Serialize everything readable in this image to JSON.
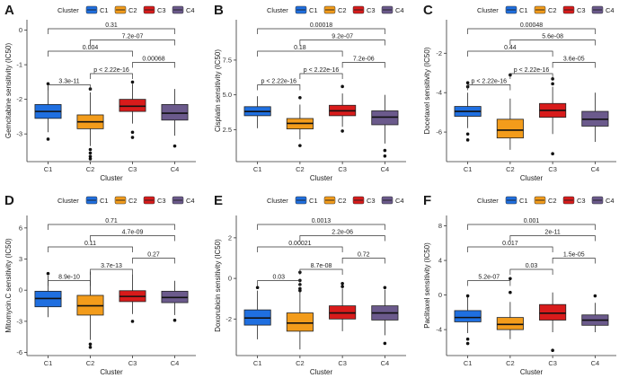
{
  "palette": {
    "C1": "#1f6fe0",
    "C2": "#f39c1b",
    "C3": "#d81b1b",
    "C4": "#6b5a8c"
  },
  "chart_data": [
    {
      "letter": "A",
      "type": "boxplot",
      "ylabel": "Gemcitabine sensitivity (IC50)",
      "xlabel": "Cluster",
      "legend_title": "Cluster",
      "legend": [
        "C1",
        "C2",
        "C3",
        "C4"
      ],
      "categories": [
        "C1",
        "C2",
        "C3",
        "C4"
      ],
      "ylim": [
        -3.8,
        0.3
      ],
      "yticks": [
        -3,
        -2,
        -1,
        0
      ],
      "boxes": [
        {
          "min": -2.95,
          "q1": -2.55,
          "median": -2.35,
          "q3": -2.15,
          "max": -1.6,
          "outliers": [
            -1.55,
            -3.15
          ]
        },
        {
          "min": -3.35,
          "q1": -2.85,
          "median": -2.65,
          "q3": -2.45,
          "max": -1.8,
          "outliers": [
            -1.7,
            -3.45,
            -3.55,
            -3.65,
            -3.72
          ]
        },
        {
          "min": -2.7,
          "q1": -2.35,
          "median": -2.2,
          "q3": -2.0,
          "max": -1.55,
          "outliers": [
            -1.5,
            -2.95,
            -3.1
          ]
        },
        {
          "min": -3.05,
          "q1": -2.6,
          "median": -2.4,
          "q3": -2.15,
          "max": -1.7,
          "outliers": [
            -3.35
          ]
        }
      ],
      "comparisons": [
        {
          "from": 0,
          "to": 1,
          "label": "3.3e-11"
        },
        {
          "from": 0,
          "to": 2,
          "label": "0.004"
        },
        {
          "from": 0,
          "to": 3,
          "label": "0.31"
        },
        {
          "from": 1,
          "to": 2,
          "label": "p < 2.22e-16"
        },
        {
          "from": 1,
          "to": 3,
          "label": "7.2e-07"
        },
        {
          "from": 2,
          "to": 3,
          "label": "0.00068"
        }
      ]
    },
    {
      "letter": "B",
      "type": "boxplot",
      "ylabel": "Cisplatin sensitivity (IC50)",
      "xlabel": "Cluster",
      "legend_title": "Cluster",
      "legend": [
        "C1",
        "C2",
        "C3",
        "C4"
      ],
      "categories": [
        "C1",
        "C2",
        "C3",
        "C4"
      ],
      "ylim": [
        0.2,
        10.4
      ],
      "yticks": [
        2.5,
        5.0,
        7.5
      ],
      "boxes": [
        {
          "min": 2.6,
          "q1": 3.5,
          "median": 3.8,
          "q3": 4.15,
          "max": 4.9,
          "outliers": []
        },
        {
          "min": 1.8,
          "q1": 2.55,
          "median": 2.95,
          "q3": 3.3,
          "max": 4.3,
          "outliers": [
            4.8,
            1.35
          ]
        },
        {
          "min": 2.7,
          "q1": 3.5,
          "median": 3.85,
          "q3": 4.25,
          "max": 5.1,
          "outliers": [
            5.6,
            2.4
          ]
        },
        {
          "min": 1.5,
          "q1": 2.85,
          "median": 3.4,
          "q3": 3.85,
          "max": 5.0,
          "outliers": [
            1.0,
            0.6
          ]
        }
      ],
      "comparisons": [
        {
          "from": 0,
          "to": 1,
          "label": "p < 2.22e-16"
        },
        {
          "from": 0,
          "to": 2,
          "label": "0.18"
        },
        {
          "from": 0,
          "to": 3,
          "label": "0.00018"
        },
        {
          "from": 1,
          "to": 2,
          "label": "p < 2.22e-16"
        },
        {
          "from": 1,
          "to": 3,
          "label": "9.2e-07"
        },
        {
          "from": 2,
          "to": 3,
          "label": "7.2e-06"
        }
      ]
    },
    {
      "letter": "C",
      "type": "boxplot",
      "ylabel": "Docetaxel sensitivity (IC50)",
      "xlabel": "Cluster",
      "legend_title": "Cluster",
      "legend": [
        "C1",
        "C2",
        "C3",
        "C4"
      ],
      "categories": [
        "C1",
        "C2",
        "C3",
        "C4"
      ],
      "ylim": [
        -7.5,
        -0.3
      ],
      "yticks": [
        -6,
        -4,
        -2
      ],
      "boxes": [
        {
          "min": -5.8,
          "q1": -5.2,
          "median": -4.95,
          "q3": -4.7,
          "max": -4.0,
          "outliers": [
            -3.5,
            -3.7,
            -6.1,
            -6.4
          ]
        },
        {
          "min": -6.9,
          "q1": -6.3,
          "median": -5.9,
          "q3": -5.35,
          "max": -4.3,
          "outliers": [
            -3.1
          ]
        },
        {
          "min": -6.1,
          "q1": -5.25,
          "median": -4.9,
          "q3": -4.55,
          "max": -3.7,
          "outliers": [
            -3.3,
            -3.55,
            -7.1
          ]
        },
        {
          "min": -6.5,
          "q1": -5.7,
          "median": -5.35,
          "q3": -4.95,
          "max": -4.0,
          "outliers": []
        }
      ],
      "comparisons": [
        {
          "from": 0,
          "to": 1,
          "label": "p < 2.22e-16"
        },
        {
          "from": 0,
          "to": 2,
          "label": "0.44"
        },
        {
          "from": 0,
          "to": 3,
          "label": "0.00048"
        },
        {
          "from": 1,
          "to": 2,
          "label": "p < 2.22e-16"
        },
        {
          "from": 1,
          "to": 3,
          "label": "5.6e-08"
        },
        {
          "from": 2,
          "to": 3,
          "label": "3.6e-05"
        }
      ]
    },
    {
      "letter": "D",
      "type": "boxplot",
      "ylabel": "Mitomycin.C sensitivity (IC50)",
      "xlabel": "Cluster",
      "legend_title": "Cluster",
      "legend": [
        "C1",
        "C2",
        "C3",
        "C4"
      ],
      "categories": [
        "C1",
        "C2",
        "C3",
        "C4"
      ],
      "ylim": [
        -6.3,
        7.2
      ],
      "yticks": [
        -6,
        -3,
        0,
        3,
        6
      ],
      "boxes": [
        {
          "min": -2.6,
          "q1": -1.6,
          "median": -0.8,
          "q3": -0.1,
          "max": 1.4,
          "outliers": [
            1.6
          ]
        },
        {
          "min": -4.8,
          "q1": -2.4,
          "median": -1.5,
          "q3": -0.5,
          "max": 1.8,
          "outliers": [
            -5.2,
            -5.5
          ]
        },
        {
          "min": -2.3,
          "q1": -1.1,
          "median": -0.6,
          "q3": -0.05,
          "max": 1.5,
          "outliers": [
            -3.0
          ]
        },
        {
          "min": -2.4,
          "q1": -1.2,
          "median": -0.7,
          "q3": -0.1,
          "max": 0.9,
          "outliers": [
            -2.9
          ]
        }
      ],
      "comparisons": [
        {
          "from": 0,
          "to": 1,
          "label": "8.9e-10"
        },
        {
          "from": 0,
          "to": 2,
          "label": "0.11"
        },
        {
          "from": 0,
          "to": 3,
          "label": "0.71"
        },
        {
          "from": 1,
          "to": 2,
          "label": "3.7e-13"
        },
        {
          "from": 1,
          "to": 3,
          "label": "4.7e-09"
        },
        {
          "from": 2,
          "to": 3,
          "label": "0.27"
        }
      ]
    },
    {
      "letter": "E",
      "type": "boxplot",
      "ylabel": "Doxorubicin sensitivity (IC50)",
      "xlabel": "Cluster",
      "legend_title": "Cluster",
      "legend": [
        "C1",
        "C2",
        "C3",
        "C4"
      ],
      "categories": [
        "C1",
        "C2",
        "C3",
        "C4"
      ],
      "ylim": [
        -3.8,
        3.1
      ],
      "yticks": [
        -2,
        0,
        2
      ],
      "boxes": [
        {
          "min": -3.0,
          "q1": -2.3,
          "median": -1.95,
          "q3": -1.55,
          "max": -0.6,
          "outliers": [
            -0.45
          ]
        },
        {
          "min": -3.5,
          "q1": -2.6,
          "median": -2.2,
          "q3": -1.7,
          "max": -0.5,
          "outliers": [
            0.3,
            -0.1,
            -0.3,
            -0.5,
            -0.6
          ]
        },
        {
          "min": -2.6,
          "q1": -2.0,
          "median": -1.7,
          "q3": -1.35,
          "max": -0.5,
          "outliers": [
            -0.25,
            -0.4
          ]
        },
        {
          "min": -2.8,
          "q1": -2.05,
          "median": -1.7,
          "q3": -1.35,
          "max": -0.55,
          "outliers": [
            -0.45,
            -3.2
          ]
        }
      ],
      "comparisons": [
        {
          "from": 0,
          "to": 1,
          "label": "0.03"
        },
        {
          "from": 0,
          "to": 2,
          "label": "0.00021"
        },
        {
          "from": 0,
          "to": 3,
          "label": "0.0013"
        },
        {
          "from": 1,
          "to": 2,
          "label": "8.7e-08"
        },
        {
          "from": 1,
          "to": 3,
          "label": "2.2e-06"
        },
        {
          "from": 2,
          "to": 3,
          "label": "0.72"
        }
      ]
    },
    {
      "letter": "F",
      "type": "boxplot",
      "ylabel": "Paclitaxel sensitivity (IC50)",
      "xlabel": "Cluster",
      "legend_title": "Cluster",
      "legend": [
        "C1",
        "C2",
        "C3",
        "C4"
      ],
      "categories": [
        "C1",
        "C2",
        "C3",
        "C4"
      ],
      "ylim": [
        -7.0,
        9.2
      ],
      "yticks": [
        -4,
        0,
        4,
        8
      ],
      "boxes": [
        {
          "min": -4.4,
          "q1": -3.1,
          "median": -2.6,
          "q3": -1.8,
          "max": -0.1,
          "outliers": [
            -0.1,
            -5.1,
            -5.6
          ]
        },
        {
          "min": -5.1,
          "q1": -4.0,
          "median": -3.4,
          "q3": -2.6,
          "max": -0.8,
          "outliers": [
            1.9,
            0.3
          ]
        },
        {
          "min": -4.3,
          "q1": -2.9,
          "median": -2.1,
          "q3": -1.1,
          "max": 0.3,
          "outliers": [
            -6.4
          ]
        },
        {
          "min": -4.3,
          "q1": -3.5,
          "median": -2.9,
          "q3": -2.3,
          "max": -0.9,
          "outliers": [
            -0.1
          ]
        }
      ],
      "comparisons": [
        {
          "from": 0,
          "to": 1,
          "label": "5.2e-07"
        },
        {
          "from": 0,
          "to": 2,
          "label": "0.017"
        },
        {
          "from": 0,
          "to": 3,
          "label": "0.001"
        },
        {
          "from": 1,
          "to": 2,
          "label": "0.03"
        },
        {
          "from": 1,
          "to": 3,
          "label": "2e-11"
        },
        {
          "from": 2,
          "to": 3,
          "label": "1.5e-05"
        }
      ]
    }
  ]
}
